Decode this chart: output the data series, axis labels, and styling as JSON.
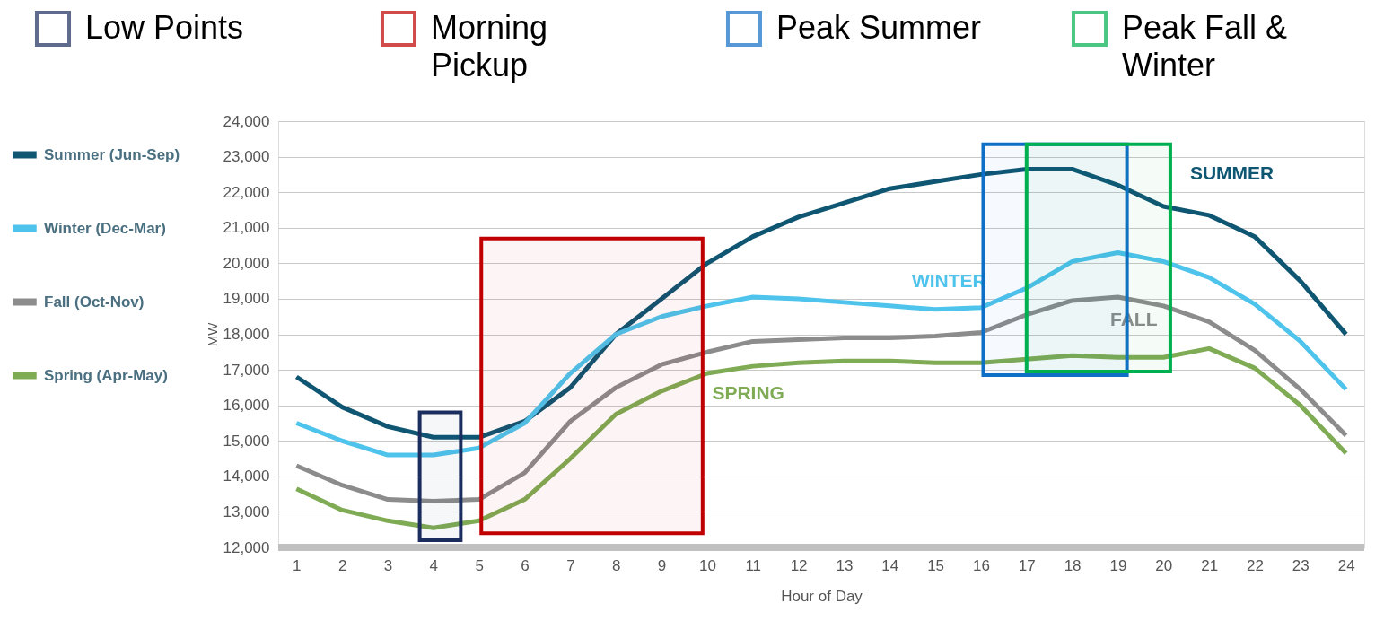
{
  "chart_data": {
    "type": "line",
    "xlabel": "Hour of Day",
    "ylabel": "MW",
    "x": [
      1,
      2,
      3,
      4,
      5,
      6,
      7,
      8,
      9,
      10,
      11,
      12,
      13,
      14,
      15,
      16,
      17,
      18,
      19,
      20,
      21,
      22,
      23,
      24
    ],
    "xlim": [
      0.6,
      24.4
    ],
    "xticks": [
      1,
      2,
      3,
      4,
      5,
      6,
      7,
      8,
      9,
      10,
      11,
      12,
      13,
      14,
      15,
      16,
      17,
      18,
      19,
      20,
      21,
      22,
      23,
      24
    ],
    "ylim": [
      12000,
      24000
    ],
    "yticks": [
      {
        "value": 12000,
        "label": "12,000"
      },
      {
        "value": 13000,
        "label": "13,000"
      },
      {
        "value": 14000,
        "label": "14,000"
      },
      {
        "value": 15000,
        "label": "15,000"
      },
      {
        "value": 16000,
        "label": "16,000"
      },
      {
        "value": 17000,
        "label": "17,000"
      },
      {
        "value": 18000,
        "label": "18,000"
      },
      {
        "value": 19000,
        "label": "19,000"
      },
      {
        "value": 20000,
        "label": "20,000"
      },
      {
        "value": 21000,
        "label": "21,000"
      },
      {
        "value": 22000,
        "label": "22,000"
      },
      {
        "value": 23000,
        "label": "23,000"
      },
      {
        "value": 24000,
        "label": "24,000"
      }
    ],
    "grid": "y",
    "legend": "left",
    "marker": "none",
    "line_style": "solid",
    "series": [
      {
        "name": "Summer (Jun-Sep)",
        "color": "#0f5673",
        "values": [
          16800,
          15950,
          15400,
          15100,
          15100,
          15550,
          16500,
          18000,
          19000,
          20000,
          20750,
          21300,
          21700,
          22100,
          22300,
          22500,
          22650,
          22650,
          22200,
          21600,
          21350,
          20750,
          19500,
          18000
        ]
      },
      {
        "name": "Winter (Dec-Mar)",
        "color": "#4ec3ec",
        "values": [
          15500,
          15000,
          14600,
          14600,
          14800,
          15500,
          16900,
          18000,
          18500,
          18800,
          19050,
          19000,
          18900,
          18800,
          18700,
          18750,
          19300,
          20050,
          20300,
          20050,
          19600,
          18850,
          17800,
          16450
        ]
      },
      {
        "name": "Fall (Oct-Nov)",
        "color": "#8c8c8c",
        "values": [
          14300,
          13750,
          13350,
          13300,
          13350,
          14100,
          15550,
          16500,
          17150,
          17500,
          17800,
          17850,
          17900,
          17900,
          17950,
          18050,
          18550,
          18950,
          19050,
          18800,
          18350,
          17550,
          16450,
          15150
        ]
      },
      {
        "name": "Spring (Apr-May)",
        "color": "#7fab55",
        "values": [
          13650,
          13050,
          12750,
          12550,
          12750,
          13350,
          14500,
          15750,
          16400,
          16900,
          17100,
          17200,
          17250,
          17250,
          17200,
          17200,
          17300,
          17400,
          17350,
          17350,
          17600,
          17050,
          16000,
          14650
        ]
      }
    ],
    "annotations": [
      "SUMMER",
      "WINTER",
      "FALL",
      "SPRING"
    ],
    "bands": [
      {
        "axis": "x",
        "from": 3.7,
        "to": 4.6,
        "label": "Low Points",
        "color": "#1b2d5e"
      },
      {
        "axis": "x",
        "from": 5.05,
        "to": 9.9,
        "label": "Morning Pickup",
        "color": "#c00000"
      },
      {
        "axis": "x",
        "from": 16.05,
        "to": 19.2,
        "label": "Peak Summer",
        "color": "#0f6fc6"
      },
      {
        "axis": "x",
        "from": 17.0,
        "to": 20.15,
        "label": "Peak Fall & Winter",
        "color": "#00b050"
      }
    ]
  }
}
